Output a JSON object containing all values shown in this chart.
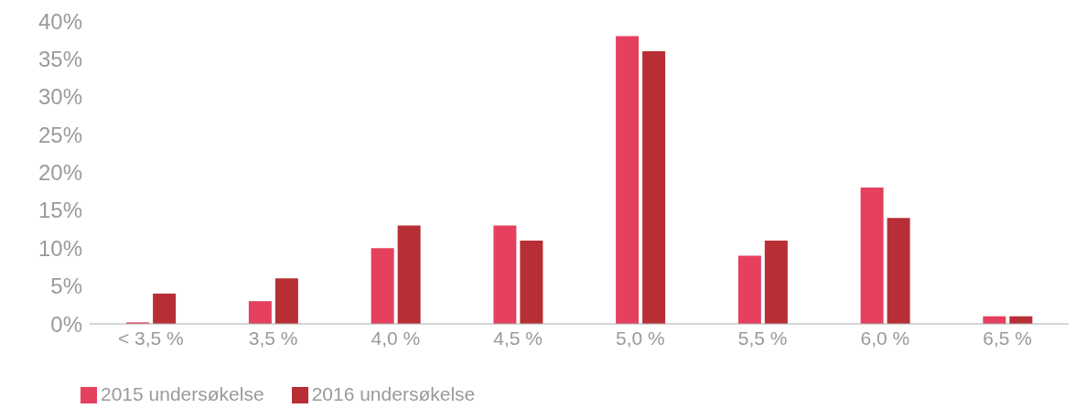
{
  "chart_data": {
    "type": "bar",
    "categories": [
      "< 3,5 %",
      "3,5  %",
      "4,0 %",
      "4,5 %",
      "5,0 %",
      "5,5 %",
      "6,0 %",
      "6,5 %"
    ],
    "series": [
      {
        "name": "2015 undersøkelse",
        "color": "#e5405e",
        "values": [
          0.2,
          3,
          10,
          13,
          38,
          9,
          18,
          1
        ]
      },
      {
        "name": "2016 undersøkelse",
        "color": "#b82e35",
        "values": [
          4,
          6,
          13,
          11,
          36,
          11,
          14,
          1
        ]
      }
    ],
    "ylim": [
      0,
      40
    ],
    "yticks": [
      {
        "value": 0,
        "label": "0%"
      },
      {
        "value": 5,
        "label": "5%"
      },
      {
        "value": 10,
        "label": "10%"
      },
      {
        "value": 15,
        "label": "15%"
      },
      {
        "value": 20,
        "label": "20%"
      },
      {
        "value": 25,
        "label": "25%"
      },
      {
        "value": 30,
        "label": "30%"
      },
      {
        "value": 35,
        "label": "35%"
      },
      {
        "value": 40,
        "label": "40%"
      }
    ],
    "grid": false,
    "legend": "bottom left"
  }
}
